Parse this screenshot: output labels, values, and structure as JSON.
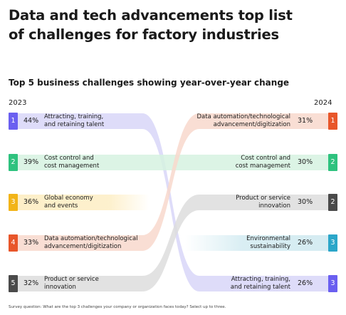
{
  "header": {
    "title_line1": "Data and tech advancements top list",
    "title_line2": "of challenges for factory industries",
    "subtitle": "Top 5 business challenges showing year-over-year change"
  },
  "footnote": "Survey question: What are the top 3 challenges your company or organization faces today? Select up to three.",
  "colors": {
    "rank1": "#6a5ff0",
    "rank2": "#2ec27e",
    "rank3": "#f2b418",
    "rank4": "#e8562a",
    "rank5": "#4a4a4a",
    "rank3_2024": "#2ba6c9",
    "flow_purple": "#d8d6f8",
    "flow_green": "#d6f2e1",
    "flow_yellow": "#fdefc8",
    "flow_orange": "#f8d8cc",
    "flow_gray": "#dddddd",
    "flow_teal": "#d5ecf2"
  },
  "chart_data": {
    "type": "table",
    "title": "Top 5 business challenges showing year-over-year change",
    "columns": [
      "2023",
      "2024"
    ],
    "years": {
      "left": "2023",
      "right": "2024"
    },
    "left": [
      {
        "rank": "1",
        "value": 44,
        "pct": "44%",
        "line1": "Attracting, training,",
        "line2": "and retaining talent",
        "color": "#6a5ff0"
      },
      {
        "rank": "2",
        "value": 39,
        "pct": "39%",
        "line1": "Cost control and",
        "line2": "cost management",
        "color": "#2ec27e"
      },
      {
        "rank": "3",
        "value": 36,
        "pct": "36%",
        "line1": "Global economy",
        "line2": "and events",
        "color": "#f2b418"
      },
      {
        "rank": "4",
        "value": 33,
        "pct": "33%",
        "line1": "Data automation/technological",
        "line2": "advancement/digitization",
        "color": "#e8562a"
      },
      {
        "rank": "5",
        "value": 32,
        "pct": "32%",
        "line1": "Product or service",
        "line2": "innovation",
        "color": "#4a4a4a"
      }
    ],
    "right": [
      {
        "rank": "1",
        "value": 31,
        "pct": "31%",
        "line1": "Data automation/technological",
        "line2": "advancement/digitization",
        "color": "#e8562a"
      },
      {
        "rank": "2",
        "value": 30,
        "pct": "30%",
        "line1": "Cost control and",
        "line2": "cost management",
        "color": "#2ec27e"
      },
      {
        "rank": "2",
        "value": 30,
        "pct": "30%",
        "line1": "Product or service",
        "line2": "innovation",
        "color": "#4a4a4a"
      },
      {
        "rank": "3",
        "value": 26,
        "pct": "26%",
        "line1": "Environmental",
        "line2": "sustainability",
        "color": "#2ba6c9"
      },
      {
        "rank": "3",
        "value": 26,
        "pct": "26%",
        "line1": "Attracting, training,",
        "line2": "and retaining talent",
        "color": "#6a5ff0"
      }
    ],
    "flows": [
      {
        "from": 0,
        "to": 4,
        "color": "#d8d6f8"
      },
      {
        "from": 1,
        "to": 1,
        "color": "#d6f2e1"
      },
      {
        "from": 2,
        "to": null,
        "color": "#fdefc8"
      },
      {
        "from": 3,
        "to": 0,
        "color": "#f8d8cc"
      },
      {
        "from": 4,
        "to": 2,
        "color": "#dddddd"
      },
      {
        "from": null,
        "to": 3,
        "color": "#d5ecf2"
      }
    ]
  }
}
